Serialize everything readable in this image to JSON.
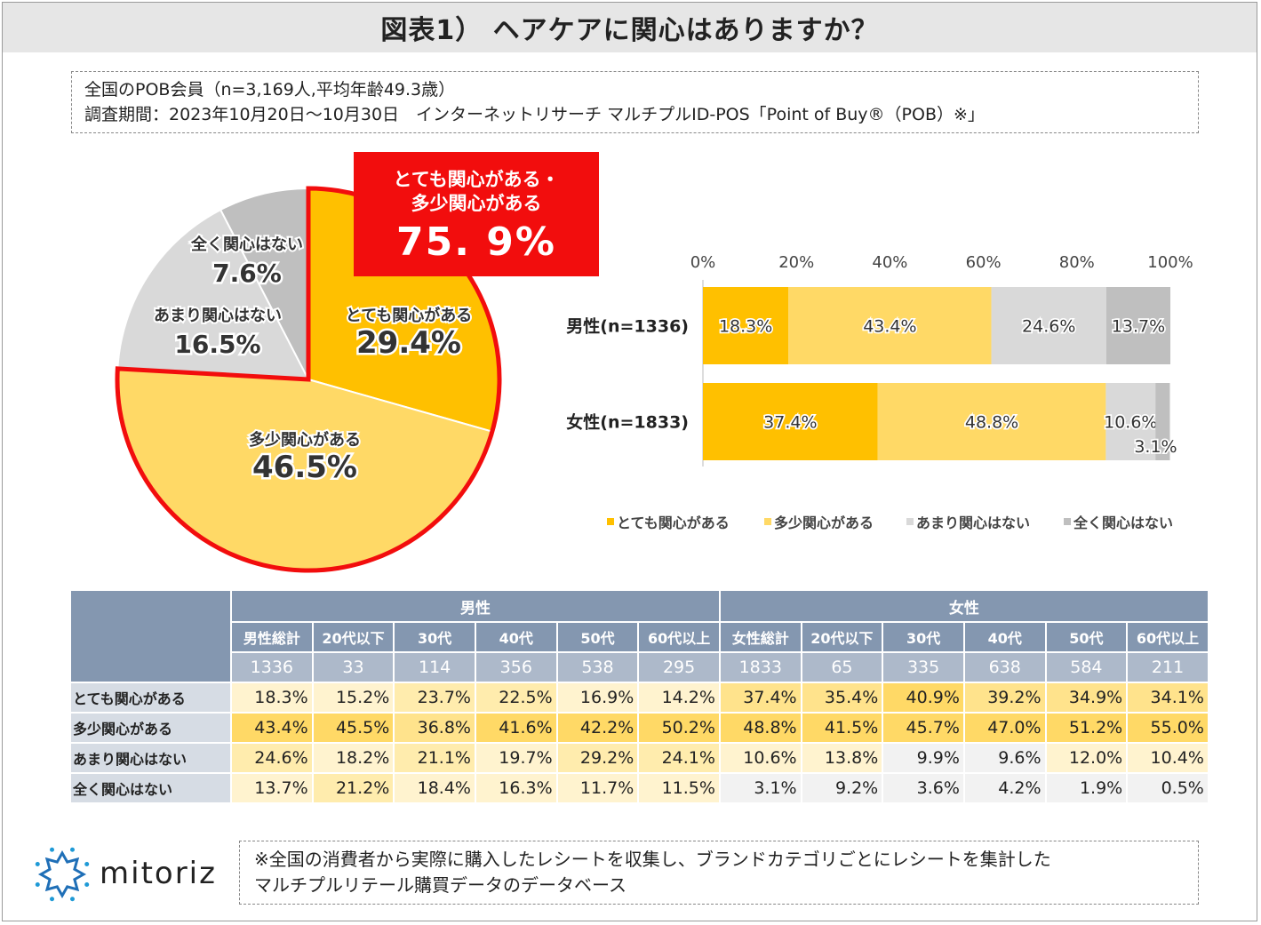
{
  "title": "図表1） ヘアケアに関心はありますか？",
  "info": {
    "line1": "全国のPOB会員（n=3,169人,平均年齢49.3歳）",
    "line2": "調査期間：2023年10月20日～10月30日　インターネットリサーチ マルチプルID-POS「Point of Buy®（POB）※」"
  },
  "callout": {
    "label1": "とても関心がある・",
    "label2": "多少関心がある",
    "value": "75. 9%"
  },
  "colors": {
    "very": "#ffc000",
    "some": "#ffd966",
    "notmuch": "#d9d9d9",
    "none": "#bfbfbf",
    "highlight": "#f20d0d",
    "header": "#8497b0"
  },
  "chart_data": [
    {
      "type": "pie",
      "slices": [
        {
          "label": "とても関心がある",
          "value": 29.4,
          "value_label": "29.4%"
        },
        {
          "label": "多少関心がある",
          "value": 46.5,
          "value_label": "46.5%"
        },
        {
          "label": "あまり関心はない",
          "value": 16.5,
          "value_label": "16.5%"
        },
        {
          "label": "全く関心はない",
          "value": 7.6,
          "value_label": "7.6%"
        }
      ]
    },
    {
      "type": "bar",
      "stacked": true,
      "orientation": "horizontal",
      "categories": [
        "男性(n=1336)",
        "女性(n=1833)"
      ],
      "x_ticks": [
        "0%",
        "20%",
        "40%",
        "60%",
        "80%",
        "100%"
      ],
      "xlim": [
        0,
        100
      ],
      "legend": "bottom",
      "series": [
        {
          "name": "とても関心がある",
          "values": [
            18.3,
            37.4
          ],
          "labels": [
            "18.3%",
            "37.4%"
          ]
        },
        {
          "name": "多少関心がある",
          "values": [
            43.4,
            48.8
          ],
          "labels": [
            "43.4%",
            "48.8%"
          ]
        },
        {
          "name": "あまり関心はない",
          "values": [
            24.6,
            10.6
          ],
          "labels": [
            "24.6%",
            "10.6%"
          ]
        },
        {
          "name": "全く関心はない",
          "values": [
            13.7,
            3.1
          ],
          "labels": [
            "13.7%",
            "3.1%"
          ]
        }
      ]
    },
    {
      "type": "table",
      "groups": [
        "男性",
        "女性"
      ],
      "columns": [
        "男性総計",
        "20代以下",
        "30代",
        "40代",
        "50代",
        "60代以上",
        "女性総計",
        "20代以下",
        "30代",
        "40代",
        "50代",
        "60代以上"
      ],
      "n": [
        "1336",
        "33",
        "114",
        "356",
        "538",
        "295",
        "1833",
        "65",
        "335",
        "638",
        "584",
        "211"
      ],
      "rows": [
        {
          "label": "とても関心がある",
          "values": [
            "18.3%",
            "15.2%",
            "23.7%",
            "22.5%",
            "16.9%",
            "14.2%",
            "37.4%",
            "35.4%",
            "40.9%",
            "39.2%",
            "34.9%",
            "34.1%"
          ]
        },
        {
          "label": "多少関心がある",
          "values": [
            "43.4%",
            "45.5%",
            "36.8%",
            "41.6%",
            "42.2%",
            "50.2%",
            "48.8%",
            "41.5%",
            "45.7%",
            "47.0%",
            "51.2%",
            "55.0%"
          ]
        },
        {
          "label": "あまり関心はない",
          "values": [
            "24.6%",
            "18.2%",
            "21.1%",
            "19.7%",
            "29.2%",
            "24.1%",
            "10.6%",
            "13.8%",
            "9.9%",
            "9.6%",
            "12.0%",
            "10.4%"
          ]
        },
        {
          "label": "全く関心はない",
          "values": [
            "13.7%",
            "21.2%",
            "18.4%",
            "16.3%",
            "11.7%",
            "11.5%",
            "3.1%",
            "9.2%",
            "3.6%",
            "4.2%",
            "1.9%",
            "0.5%"
          ]
        }
      ]
    }
  ],
  "footnote": {
    "line1": "※全国の消費者から実際に購入したレシートを収集し、ブランドカテゴリごとにレシートを集計した",
    "line2": "マルチプルリテール購買データのデータベース"
  },
  "logo": {
    "text": "mitoriz"
  }
}
